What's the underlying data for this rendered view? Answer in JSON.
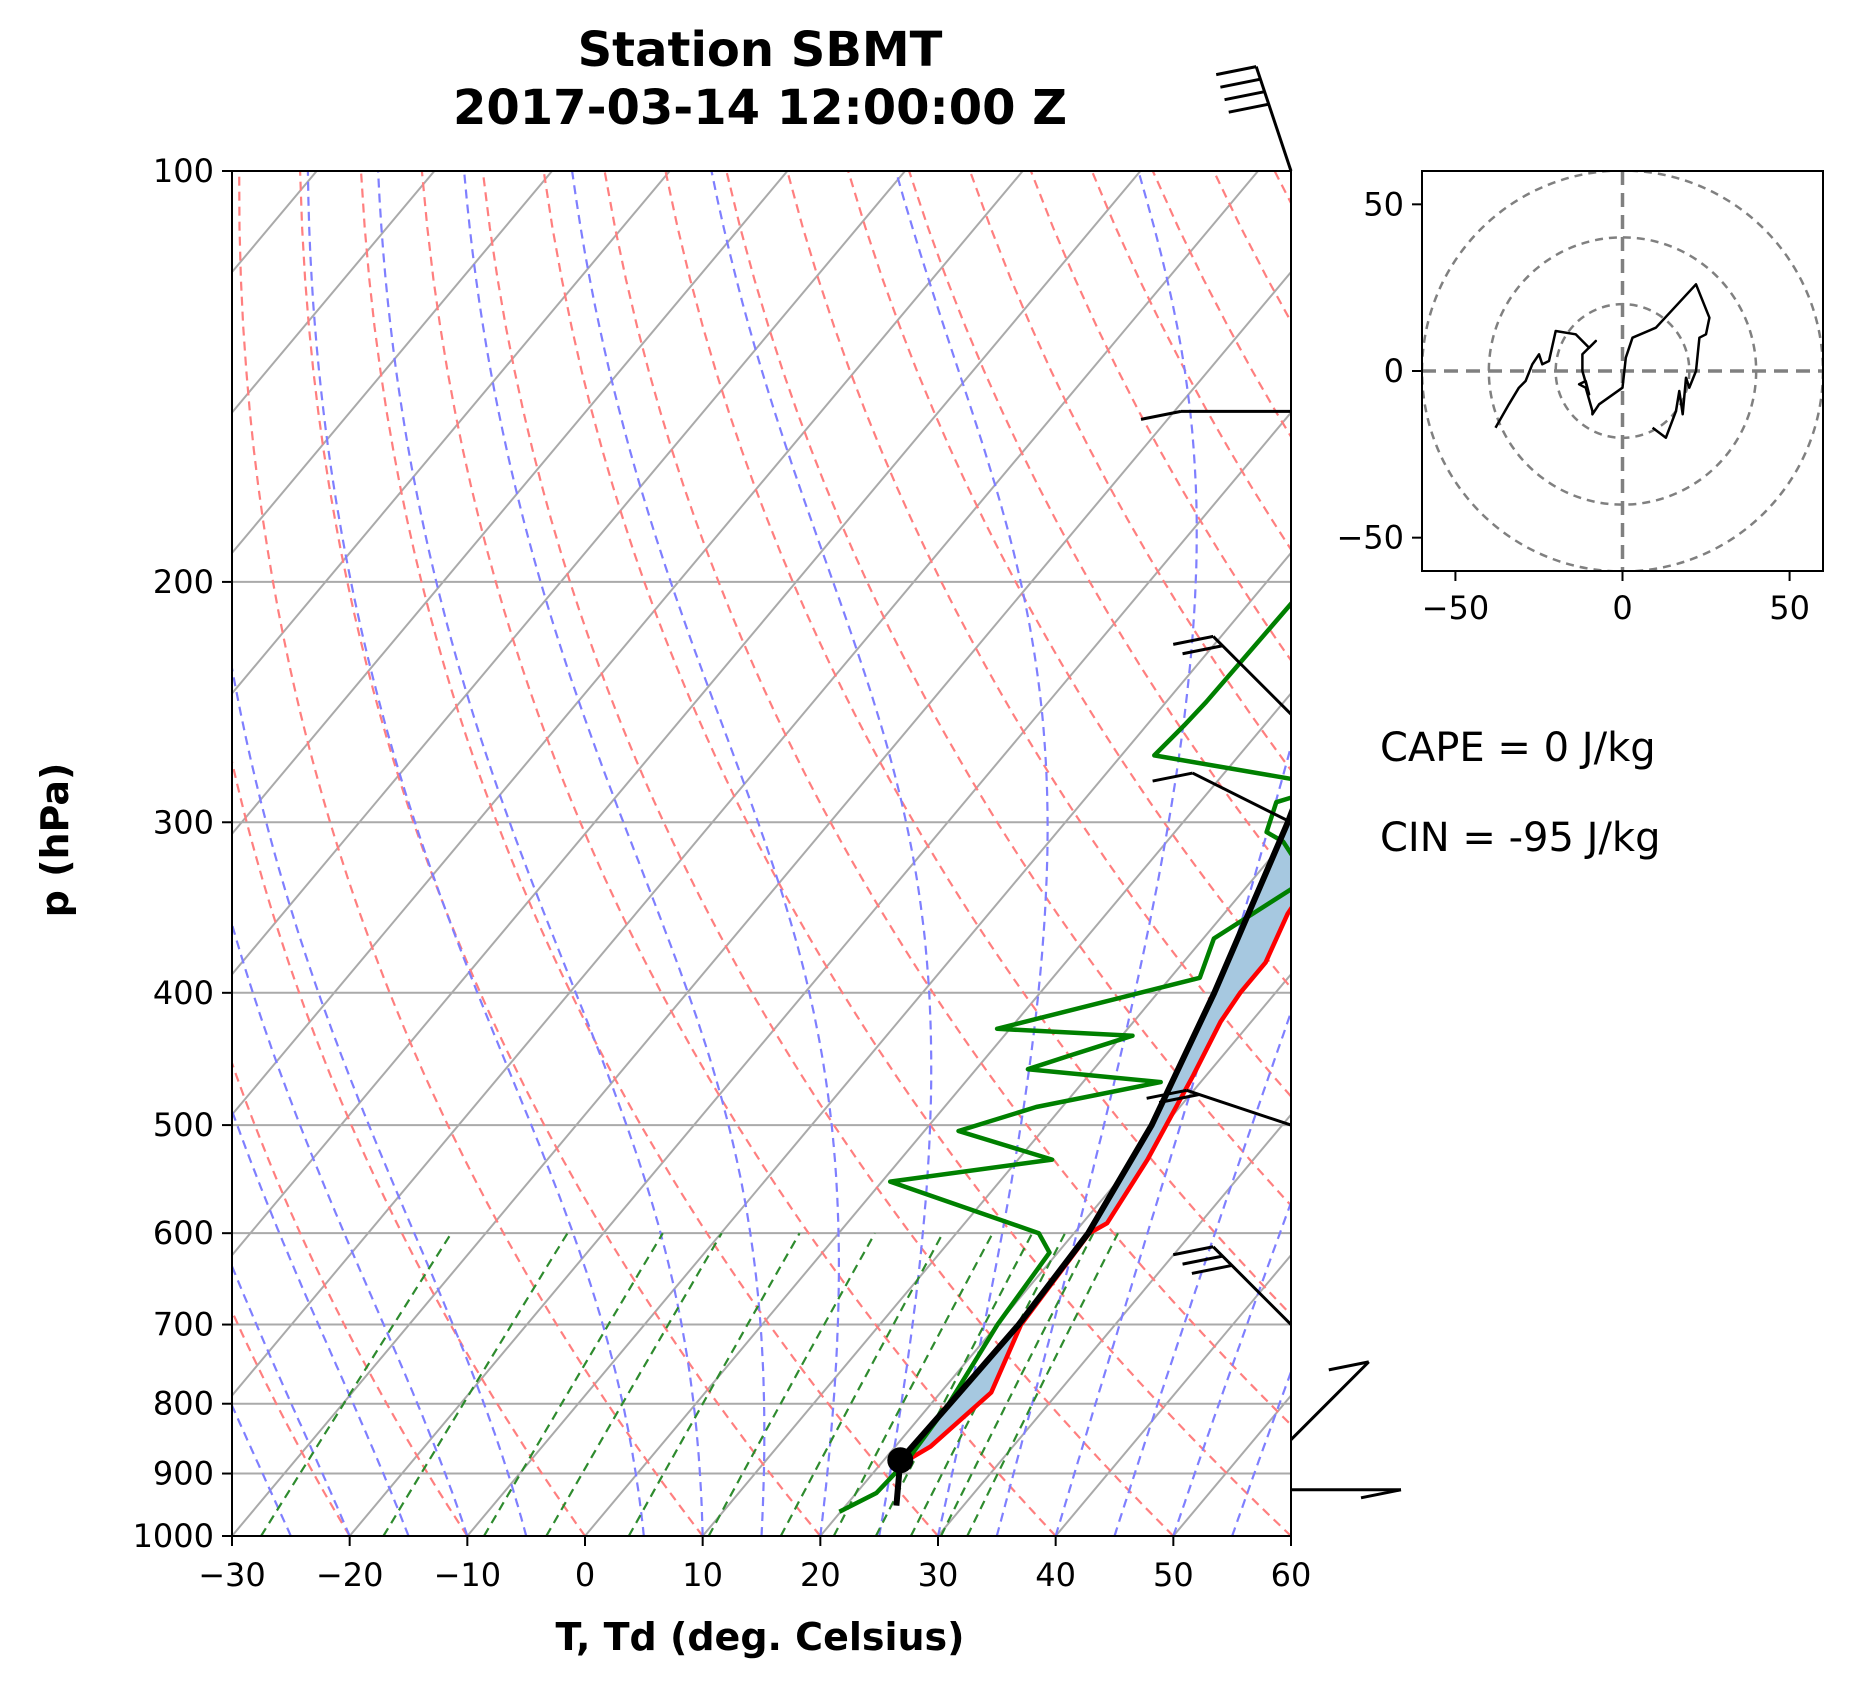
{
  "chart_data": [
    {
      "type": "line",
      "kind": "skew-t log-p sounding",
      "title_line1": "Station SBMT",
      "title_line2": "2017-03-14 12:00:00 Z",
      "xlabel": "T, Td (deg. Celsius)",
      "ylabel": "p (hPa)",
      "xlim": [
        -30,
        60
      ],
      "ylim": [
        1000,
        100
      ],
      "yscale": "log",
      "x_ticks": [
        "−30",
        "−20",
        "−10",
        "0",
        "10",
        "20",
        "30",
        "40",
        "50",
        "60"
      ],
      "x_tick_values": [
        -30,
        -20,
        -10,
        0,
        10,
        20,
        30,
        40,
        50,
        60
      ],
      "y_ticks": [
        "100",
        "200",
        "300",
        "400",
        "500",
        "600",
        "700",
        "800",
        "900",
        "1000"
      ],
      "y_tick_values": [
        100,
        200,
        300,
        400,
        500,
        600,
        700,
        800,
        900,
        1000
      ],
      "grid": true,
      "series": [
        {
          "role": "temperature",
          "color": "#ff0000",
          "points": [
            [
              880,
              22
            ],
            [
              860,
              23
            ],
            [
              785,
              24.3
            ],
            [
              700,
              22
            ],
            [
              600,
              21.3
            ],
            [
              590,
              22.1
            ],
            [
              530,
              21
            ],
            [
              460,
              18.9
            ],
            [
              420,
              17.4
            ],
            [
              400,
              17
            ],
            [
              380,
              17
            ],
            [
              350,
              15.4
            ],
            [
              310,
              14.3
            ],
            [
              280,
              12.6
            ],
            [
              260,
              11.2
            ],
            [
              200,
              7.4
            ],
            [
              180,
              6.9
            ],
            [
              150,
              5.7
            ],
            [
              140,
              5.4
            ],
            [
              125,
              6.1
            ],
            [
              100,
              7.9
            ]
          ]
        },
        {
          "role": "dewpoint",
          "color": "#008000",
          "points": [
            [
              960,
              19.9
            ],
            [
              930,
              21.7
            ],
            [
              880,
              22
            ],
            [
              800,
              21.5
            ],
            [
              700,
              20
            ],
            [
              620,
              19.3
            ],
            [
              600,
              17
            ],
            [
              550,
              0.7
            ],
            [
              530,
              12.9
            ],
            [
              505,
              2.9
            ],
            [
              485,
              7.8
            ],
            [
              465,
              16.6
            ],
            [
              455,
              4.4
            ],
            [
              445,
              6.9
            ],
            [
              430,
              10.9
            ],
            [
              425,
              -1.1
            ],
            [
              390,
              12.5
            ],
            [
              365,
              10.9
            ],
            [
              330,
              14.6
            ],
            [
              310,
              9.9
            ],
            [
              305,
              7.8
            ],
            [
              290,
              6.5
            ],
            [
              282,
              9.9
            ],
            [
              268,
              -7.2
            ],
            [
              255,
              -6.8
            ],
            [
              245,
              -6.6
            ],
            [
              195,
              -6.3
            ],
            [
              180,
              -5.5
            ],
            [
              155,
              -4.3
            ],
            [
              140,
              -1.9
            ],
            [
              120,
              1.6
            ],
            [
              100,
              4.4
            ]
          ]
        },
        {
          "role": "parcel profile",
          "color": "#000000",
          "points": [
            [
              950,
              24.3
            ],
            [
              880,
              21.4
            ],
            [
              800,
              21.6
            ],
            [
              700,
              21.8
            ],
            [
              600,
              21.2
            ],
            [
              500,
              18.9
            ],
            [
              400,
              14.8
            ],
            [
              300,
              8.9
            ],
            [
              250,
              4.7
            ],
            [
              200,
              -0.5
            ],
            [
              180,
              -2.8
            ],
            [
              160,
              -5.5
            ],
            [
              150,
              -7.0
            ],
            [
              130,
              -10.2
            ],
            [
              115,
              -12.9
            ],
            [
              100,
              -15.8
            ]
          ]
        }
      ],
      "lcl_pressure": 880,
      "shading": [
        "CAPE (red) between parcel and environment",
        "CIN (blue) between parcel and environment"
      ],
      "wind_barbs": [
        {
          "p": 100,
          "u": -15,
          "v": 45
        },
        {
          "p": 150,
          "u": -10,
          "v": 0
        },
        {
          "p": 250,
          "u": -15,
          "v": 15
        },
        {
          "p": 300,
          "u": -10,
          "v": 5
        },
        {
          "p": 500,
          "u": -15,
          "v": 5
        },
        {
          "p": 700,
          "u": -20,
          "v": 20
        },
        {
          "p": 850,
          "u": 5,
          "v": 5
        },
        {
          "p": 925,
          "u": 5,
          "v": 0
        }
      ]
    },
    {
      "type": "line",
      "kind": "hodograph",
      "xlim": [
        -60,
        60
      ],
      "ylim": [
        -60,
        60
      ],
      "x_ticks": [
        "−50",
        "0",
        "50"
      ],
      "x_tick_values": [
        -50,
        0,
        50
      ],
      "y_ticks": [
        "50",
        "0",
        "−50"
      ],
      "y_tick_values": [
        50,
        0,
        -50
      ],
      "range_rings": [
        20,
        40,
        60
      ],
      "points": [
        [
          9,
          -17
        ],
        [
          13,
          -20
        ],
        [
          16,
          -12
        ],
        [
          17,
          -6
        ],
        [
          18,
          -13
        ],
        [
          19,
          -2
        ],
        [
          20,
          -5
        ],
        [
          22,
          0
        ],
        [
          23,
          10
        ],
        [
          25,
          11
        ],
        [
          26,
          16
        ],
        [
          22,
          26
        ],
        [
          10,
          13
        ],
        [
          3,
          10
        ],
        [
          1,
          4
        ],
        [
          0,
          -5
        ],
        [
          -7,
          -10
        ],
        [
          -9,
          -13
        ],
        [
          -9,
          -12
        ],
        [
          -11,
          -5
        ],
        [
          -13,
          -4
        ],
        [
          -11,
          -3
        ],
        [
          -10,
          -7
        ],
        [
          -12,
          0
        ],
        [
          -12,
          5
        ],
        [
          -8,
          9
        ],
        [
          -10,
          7
        ],
        [
          -14,
          11
        ],
        [
          -20,
          12
        ],
        [
          -22,
          3
        ],
        [
          -24,
          2
        ],
        [
          -25,
          5
        ],
        [
          -27,
          2
        ],
        [
          -29,
          -3
        ],
        [
          -31,
          -5
        ],
        [
          -34,
          -10
        ],
        [
          -38,
          -17
        ]
      ]
    }
  ],
  "stats": {
    "cape": "CAPE = 0 J/kg",
    "cin": "CIN = -95 J/kg"
  },
  "colors": {
    "temperature": "#ff0000",
    "dewpoint": "#008000",
    "parcel": "#000000",
    "dry_adiabats": "#ff7f7f",
    "moist_adiabats": "#7f7fff",
    "mixing_lines": "#2e8b2e",
    "isotherms": "#aaaaaa",
    "cin_fill": "#a6c8e0",
    "cape_fill": "#f4b4b4"
  }
}
